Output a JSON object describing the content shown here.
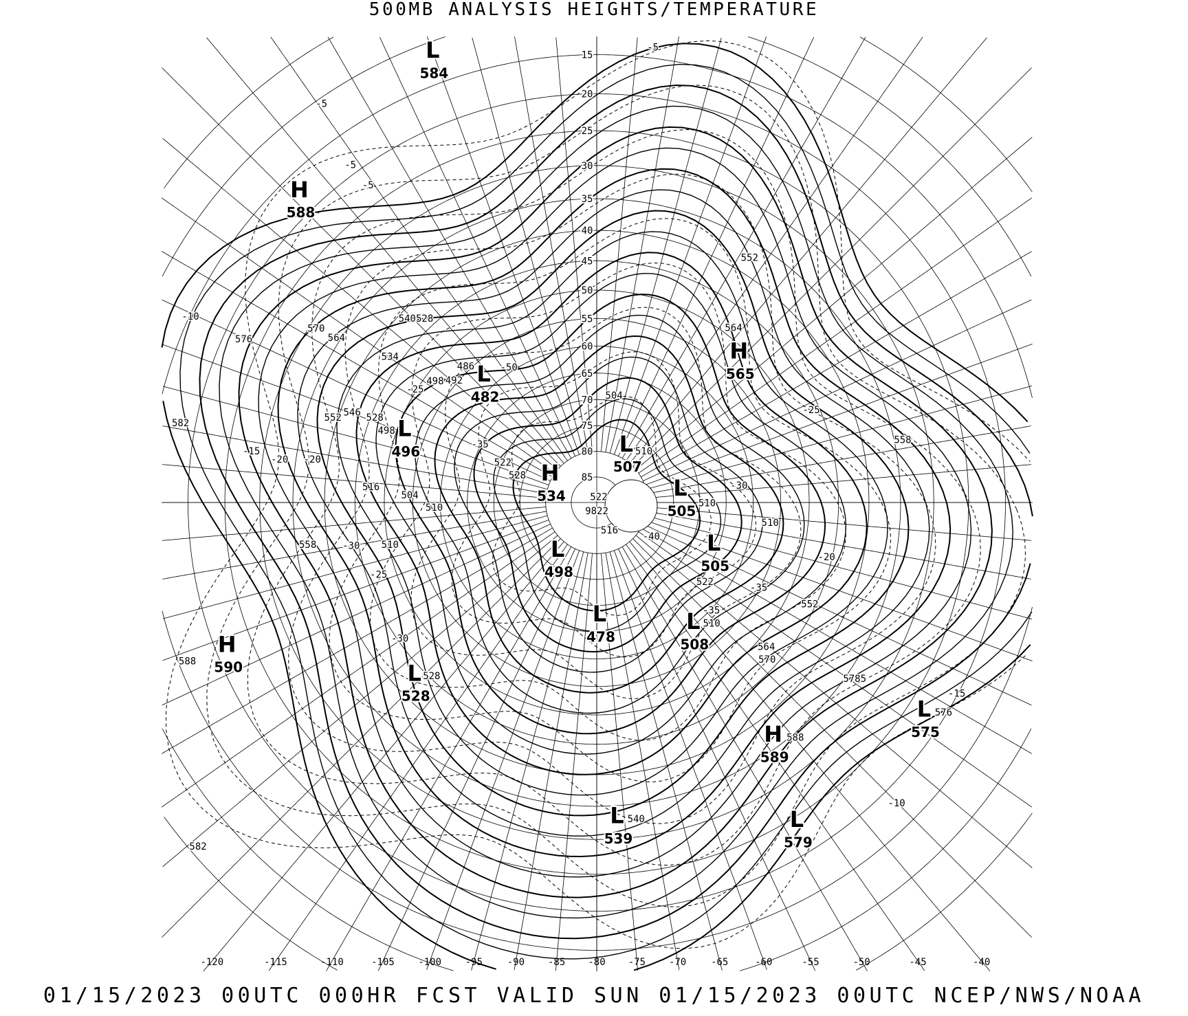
{
  "title": "500MB ANALYSIS  HEIGHTS/TEMPERATURE",
  "footer": "01/15/2023 00UTC 000HR FCST VALID SUN 01/15/2023 00UTC  NCEP/NWS/NOAA",
  "projection": "north polar stereographic",
  "latitude_labels": [
    "15",
    "20",
    "25",
    "30",
    "35",
    "40",
    "45",
    "50",
    "55",
    "60",
    "65",
    "70",
    "75",
    "80",
    "85"
  ],
  "longitude_labels": [
    "-120",
    "-115",
    "-110",
    "-105",
    "-100",
    "-95",
    "-90",
    "-85",
    "-80",
    "-75",
    "-70",
    "-65",
    "-60",
    "-55",
    "-50",
    "-45",
    "-40"
  ],
  "pressure_centers": [
    {
      "type": "L",
      "value": "584"
    },
    {
      "type": "H",
      "value": "588"
    },
    {
      "type": "H",
      "value": "565"
    },
    {
      "type": "L",
      "value": "482"
    },
    {
      "type": "L",
      "value": "496"
    },
    {
      "type": "L",
      "value": "507"
    },
    {
      "type": "H",
      "value": "534"
    },
    {
      "type": "L",
      "value": "505"
    },
    {
      "type": "L",
      "value": "505"
    },
    {
      "type": "L",
      "value": "498"
    },
    {
      "type": "L",
      "value": "478"
    },
    {
      "type": "L",
      "value": "508"
    },
    {
      "type": "H",
      "value": "590"
    },
    {
      "type": "L",
      "value": "528"
    },
    {
      "type": "L",
      "value": "575"
    },
    {
      "type": "H",
      "value": "589"
    },
    {
      "type": "L",
      "value": "539"
    },
    {
      "type": "L",
      "value": "579"
    }
  ],
  "height_labels": [
    "552",
    "564",
    "558",
    "552",
    "564",
    "570",
    "5785",
    "576",
    "588",
    "540",
    "582",
    "588",
    "558",
    "582",
    "576",
    "570",
    "564",
    "540528",
    "534",
    "552",
    "546",
    "528",
    "498",
    "516",
    "504",
    "510",
    "510",
    "522",
    "528",
    "504",
    "510",
    "522",
    "9822",
    "516",
    "510",
    "510",
    "522",
    "510",
    "528",
    "492",
    "498",
    "486"
  ],
  "temperature_labels": [
    "-5",
    "-5",
    "-5",
    "-5",
    "-10",
    "-15",
    "-20",
    "-20",
    "-25",
    "-25",
    "-30",
    "-30",
    "-30",
    "-35",
    "-25",
    "-20",
    "-10",
    "-15",
    "-35",
    "-40",
    "-35",
    "-50"
  ],
  "colors": {
    "lines": "#000000",
    "background": "#ffffff"
  }
}
